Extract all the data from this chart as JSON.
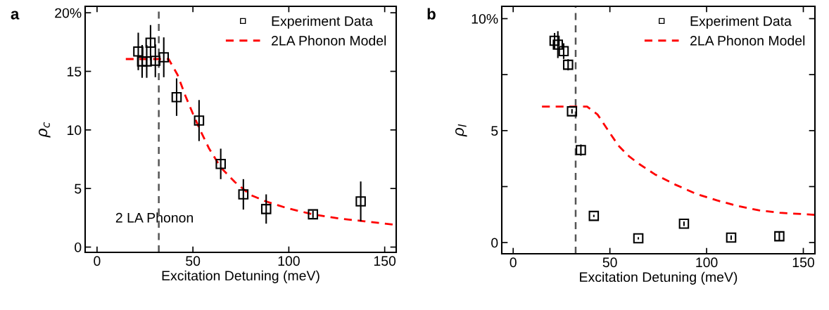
{
  "chart_data": [
    {
      "type": "scatter",
      "title": "a",
      "xlabel": "Excitation Detuning (meV)",
      "ylabel": "ρ$_{c}$",
      "xlim": [
        -6.2,
        156
      ],
      "xticks": [
        0,
        50,
        100,
        150
      ],
      "ylim": [
        -0.45,
        20.55
      ],
      "yticks": [
        0,
        5,
        10,
        15,
        {
          "value": 20,
          "label": "20%"
        }
      ],
      "legend": "top right",
      "grid": false,
      "series": [
        {
          "name": "Experiment Data",
          "marker": "square",
          "color": "#000000",
          "x": [
            21.5,
            23.5,
            25.9,
            27.9,
            30.4,
            34.8,
            41.5,
            53.2,
            64.5,
            76.3,
            88.2,
            112.6,
            137.5
          ],
          "values": [
            16.7,
            15.85,
            15.85,
            17.45,
            15.9,
            16.2,
            12.8,
            10.8,
            7.1,
            4.5,
            3.25,
            2.8,
            3.9
          ],
          "errors": [
            1.6,
            1.4,
            1.4,
            1.5,
            1.4,
            1.7,
            1.6,
            1.75,
            1.3,
            1.3,
            1.25,
            0.3,
            1.7
          ]
        },
        {
          "name": "2LA Phonon Model",
          "type": "line",
          "line_style": "dashed",
          "color": "#ff0000",
          "x": [
            15,
            37.3,
            42,
            46.1,
            50.2,
            54.3,
            58.3,
            64.5,
            71.9,
            80,
            88.1,
            98.9,
            112.4,
            126,
            139.5,
            155.8
          ],
          "values": [
            16.05,
            16.05,
            14.7,
            12.9,
            11.3,
            9.8,
            8.45,
            6.8,
            5.55,
            4.45,
            3.9,
            3.33,
            2.8,
            2.45,
            2.2,
            1.9
          ]
        }
      ],
      "ref_lines": [
        {
          "axis": "x",
          "value": 32.2,
          "color": "#555555",
          "line_style": "dashed"
        }
      ],
      "annotations": [
        "2 LA Phonon"
      ]
    },
    {
      "type": "scatter",
      "title": "b",
      "xlabel": "Excitation Detuning (meV)",
      "ylabel": "ρ$_{l}$",
      "xlim": [
        -5.9,
        156
      ],
      "xticks": [
        0,
        50,
        100,
        150
      ],
      "ylim": [
        -0.5,
        10.55
      ],
      "yticks": [
        0,
        {
          "value": 2.5,
          "label": null
        },
        5,
        {
          "value": 7.5,
          "label": null
        },
        {
          "value": 10,
          "label": "10%"
        }
      ],
      "legend": "top right",
      "grid": false,
      "series": [
        {
          "name": "Experiment Data",
          "marker": "square",
          "color": "#000000",
          "x": [
            21.4,
            23.1,
            26.1,
            28.4,
            30.4,
            35.0,
            41.7,
            64.7,
            88.3,
            112.7,
            137.6
          ],
          "values": [
            9.01,
            8.84,
            8.55,
            7.94,
            5.86,
            4.13,
            1.19,
            0.19,
            0.84,
            0.22,
            0.28
          ],
          "errors": [
            0.35,
            0.6,
            0.35,
            0.25,
            0.1,
            0.25,
            0.05,
            0.05,
            0.1,
            0.1,
            0.2
          ]
        },
        {
          "name": "2LA Phonon Model",
          "type": "line",
          "line_style": "dashed",
          "color": "#ff0000",
          "x": [
            14.9,
            38.2,
            43.6,
            49,
            54.4,
            59.8,
            65.1,
            73.2,
            84,
            94.8,
            105.5,
            116.3,
            127,
            137.8,
            156
          ],
          "values": [
            6.07,
            6.07,
            5.72,
            5.02,
            4.33,
            3.86,
            3.51,
            3.05,
            2.58,
            2.17,
            1.88,
            1.63,
            1.44,
            1.33,
            1.24
          ]
        }
      ],
      "ref_lines": [
        {
          "axis": "x",
          "value": 32.3,
          "color": "#555555",
          "line_style": "dashed"
        }
      ]
    }
  ]
}
